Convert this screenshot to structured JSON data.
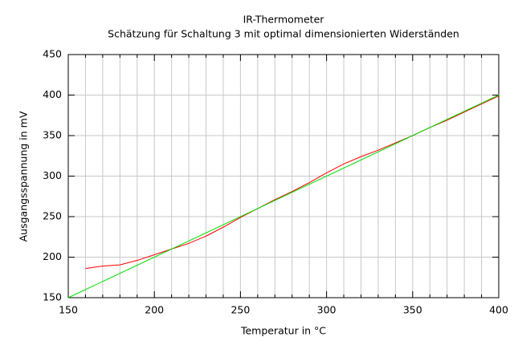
{
  "chart_data": {
    "type": "line",
    "title": "IR-Thermometer",
    "subtitle": "Schätzung für Schaltung 3 mit optimal dimensionierten Widerständen",
    "x_label": "Temperatur in °C",
    "y_label": "Ausgangsspannung in mV",
    "xlim": [
      150,
      400
    ],
    "ylim": [
      150,
      450
    ],
    "xticks": [
      150,
      200,
      250,
      300,
      350,
      400
    ],
    "x_minor_ticks": [
      160,
      170,
      180,
      190,
      210,
      220,
      230,
      240,
      260,
      270,
      280,
      290,
      310,
      320,
      330,
      340,
      360,
      370,
      380,
      390
    ],
    "yticks": [
      150,
      200,
      250,
      300,
      350,
      400,
      450
    ],
    "grid": true,
    "series": [
      {
        "color": "#ff0000",
        "x": [
          160,
          170,
          180,
          190,
          200,
          210,
          220,
          230,
          240,
          250,
          260,
          270,
          280,
          290,
          300,
          310,
          320,
          330,
          340,
          350,
          360,
          370,
          380,
          390,
          400
        ],
        "values": [
          186,
          189,
          190.5,
          196,
          203,
          210,
          217,
          226,
          237,
          249,
          260,
          271,
          281,
          292,
          304,
          315,
          324,
          332,
          341,
          350,
          360,
          369,
          379,
          389,
          399
        ]
      },
      {
        "color": "#00dd00",
        "x": [
          150,
          400
        ],
        "values": [
          150,
          400
        ]
      }
    ]
  }
}
